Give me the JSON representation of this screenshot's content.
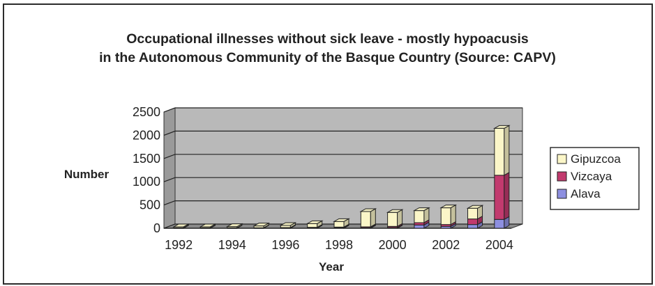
{
  "chart_data": {
    "type": "bar",
    "stacked": true,
    "three_d": true,
    "title": [
      "Occupational illnesses without sick leave - mostly hypoacusis",
      "in the Autonomous Community of the Basque Country (Source: CAPV)"
    ],
    "xlabel": "Year",
    "ylabel": "Number",
    "ylim": [
      0,
      2500
    ],
    "yticks": [
      0,
      500,
      1000,
      1500,
      2000,
      2500
    ],
    "xtick_labels": [
      "1992",
      "1994",
      "1996",
      "1998",
      "2000",
      "2002",
      "2004"
    ],
    "categories": [
      "1992",
      "1993",
      "1994",
      "1995",
      "1996",
      "1997",
      "1998",
      "1999",
      "2000",
      "2001",
      "2002",
      "2003",
      "2004"
    ],
    "series": [
      {
        "name": "Alava",
        "color": "#8d8fe0",
        "values": [
          5,
          5,
          5,
          5,
          5,
          8,
          10,
          12,
          15,
          70,
          40,
          80,
          190
        ]
      },
      {
        "name": "Vizcaya",
        "color": "#c23a6e",
        "values": [
          5,
          5,
          5,
          5,
          10,
          12,
          15,
          18,
          25,
          50,
          40,
          120,
          950
        ]
      },
      {
        "name": "Gipuzcoa",
        "color": "#fbf6c8",
        "values": [
          20,
          20,
          25,
          40,
          45,
          80,
          120,
          330,
          300,
          260,
          360,
          230,
          1010
        ]
      }
    ],
    "legend_position": "right",
    "grid": true
  }
}
